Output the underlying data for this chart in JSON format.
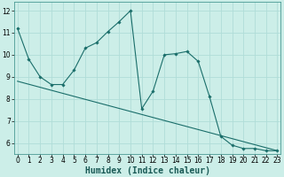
{
  "xlabel": "Humidex (Indice chaleur)",
  "bg_color": "#cceee8",
  "grid_color": "#b0ddd8",
  "line_color": "#1a6e6a",
  "line1_x": [
    0,
    1,
    2,
    3,
    4,
    5,
    6,
    7,
    8,
    9,
    10,
    11,
    12,
    13,
    14,
    15,
    16,
    17,
    18,
    19,
    20,
    21,
    22,
    23
  ],
  "line1_y": [
    11.2,
    9.8,
    9.0,
    8.65,
    8.65,
    9.3,
    10.3,
    10.55,
    11.05,
    11.5,
    12.0,
    7.55,
    8.35,
    10.0,
    10.05,
    10.15,
    9.7,
    8.1,
    6.3,
    5.9,
    5.75,
    5.75,
    5.65,
    5.65
  ],
  "line2_x": [
    0,
    23
  ],
  "line2_y": [
    8.8,
    5.65
  ],
  "xlim": [
    -0.3,
    23.3
  ],
  "ylim": [
    5.5,
    12.4
  ],
  "yticks": [
    6,
    7,
    8,
    9,
    10,
    11,
    12
  ],
  "xticks": [
    0,
    1,
    2,
    3,
    4,
    5,
    6,
    7,
    8,
    9,
    10,
    11,
    12,
    13,
    14,
    15,
    16,
    17,
    18,
    19,
    20,
    21,
    22,
    23
  ],
  "xlabel_fontsize": 7,
  "tick_fontsize": 5.5
}
